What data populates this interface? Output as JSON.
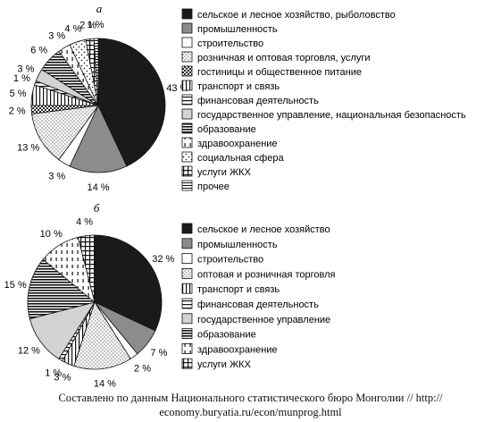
{
  "chart_data": [
    {
      "type": "pie",
      "panel_label": "а",
      "categories": [
        "сельское и лесное хозяйство, рыболовство",
        "промышленность",
        "строительство",
        "розничная и оптовая торговля, услуги",
        "гостиницы и общественное питание",
        "транспорт и связь",
        "финансовая деятельность",
        "государственное управление, национальная безопасность",
        "образование",
        "здравоохранение",
        "социальная сфера",
        "услуги ЖКХ",
        "прочее"
      ],
      "values": [
        43,
        14,
        3,
        13,
        2,
        5,
        1,
        3,
        6,
        3,
        4,
        2,
        1
      ],
      "labels": [
        "43 %",
        "14 %",
        "3 %",
        "13 %",
        "2 %",
        "5 %",
        "1 %",
        "3 %",
        "6 %",
        "3 %",
        "4 %",
        "2 %",
        "1 %"
      ],
      "patterns": [
        "black",
        "gray",
        "white",
        "dots",
        "checker",
        "vlines",
        "hlines",
        "lightgray",
        "hbars",
        "vdash",
        "sparsedots",
        "grid",
        "dhlines"
      ],
      "legend_position": "right"
    },
    {
      "type": "pie",
      "panel_label": "б",
      "categories": [
        "сельское и лесное хозяйство",
        "промышленность",
        "строительство",
        "оптовая и розничная торговля",
        "транспорт и связь",
        "финансовая деятельность",
        "государственное управление",
        "образование",
        "здравоохранение",
        "услуги ЖКХ"
      ],
      "values": [
        32,
        7,
        2,
        14,
        3,
        1,
        12,
        15,
        10,
        4
      ],
      "labels": [
        "32 %",
        "7 %",
        "2 %",
        "14 %",
        "3 %",
        "1 %",
        "12 %",
        "15 %",
        "10 %",
        "4 %"
      ],
      "patterns": [
        "black",
        "gray",
        "white",
        "dots",
        "vlines",
        "hlines",
        "lightgray",
        "hbars",
        "vdash",
        "grid"
      ],
      "legend_position": "right"
    }
  ],
  "caption": {
    "line1": "Составлено по данным Национального статистического бюро Монголии // http://",
    "line2": "economy.buryatia.ru/econ/munprog.html"
  }
}
